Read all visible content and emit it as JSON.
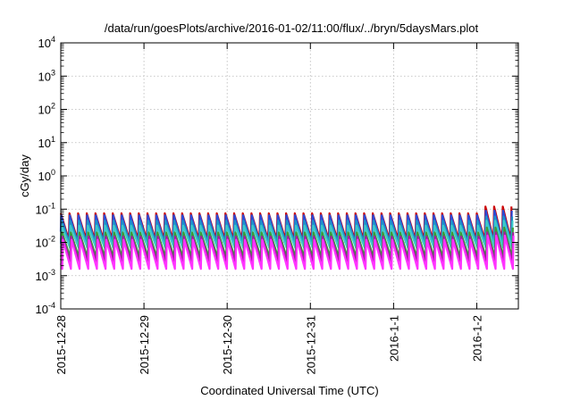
{
  "chart_data": {
    "type": "line",
    "title": "/data/run/goesPlots/archive/2016-01-02/11:00/flux/../bryn/5daysMars.plot",
    "xlabel": "Coordinated Universal Time (UTC)",
    "ylabel": "cGy/day",
    "x_axis": "time",
    "xlim": [
      "2015-12-28 00:00",
      "2016-01-02 12:00"
    ],
    "x_ticks": [
      "2015-12-28",
      "2015-12-29",
      "2015-12-30",
      "2015-12-31",
      "2016-1-1",
      "2016-1-2"
    ],
    "y_scale": "log",
    "ylim": [
      0.0001,
      10000
    ],
    "y_ticks": [
      {
        "base": "10",
        "exp": "-4",
        "value": 0.0001
      },
      {
        "base": "10",
        "exp": "-3",
        "value": 0.001
      },
      {
        "base": "10",
        "exp": "-2",
        "value": 0.01
      },
      {
        "base": "10",
        "exp": "-1",
        "value": 0.1
      },
      {
        "base": "10",
        "exp": "0",
        "value": 1
      },
      {
        "base": "10",
        "exp": "1",
        "value": 10
      },
      {
        "base": "10",
        "exp": "2",
        "value": 100
      },
      {
        "base": "10",
        "exp": "3",
        "value": 1000
      },
      {
        "base": "10",
        "exp": "4",
        "value": 10000
      }
    ],
    "grid": true,
    "legend": "none",
    "pattern": {
      "shape": "sawtooth",
      "period_hours": 2.5,
      "note_peak_increase_start": "2016-01-02 01:30"
    },
    "series": [
      {
        "color": "#cc0000",
        "peak": 0.075,
        "trough": 0.012,
        "late_peak": 0.12
      },
      {
        "color": "#2a4cd9",
        "peak": 0.065,
        "trough": 0.009,
        "late_peak": 0.09
      },
      {
        "color": "#1f8fc8",
        "peak": 0.045,
        "trough": 0.0095,
        "late_peak": 0.06
      },
      {
        "color": "#3cc8c8",
        "peak": 0.032,
        "trough": 0.007,
        "late_peak": 0.045
      },
      {
        "color": "#3a9a3a",
        "peak": 0.02,
        "trough": 0.0035,
        "late_peak": 0.028
      },
      {
        "color": "#a020a0",
        "peak": 0.015,
        "trough": 0.0025,
        "late_peak": 0.02
      },
      {
        "color": "#ff33ff",
        "peak": 0.012,
        "trough": 0.0016,
        "late_peak": 0.016
      }
    ]
  }
}
